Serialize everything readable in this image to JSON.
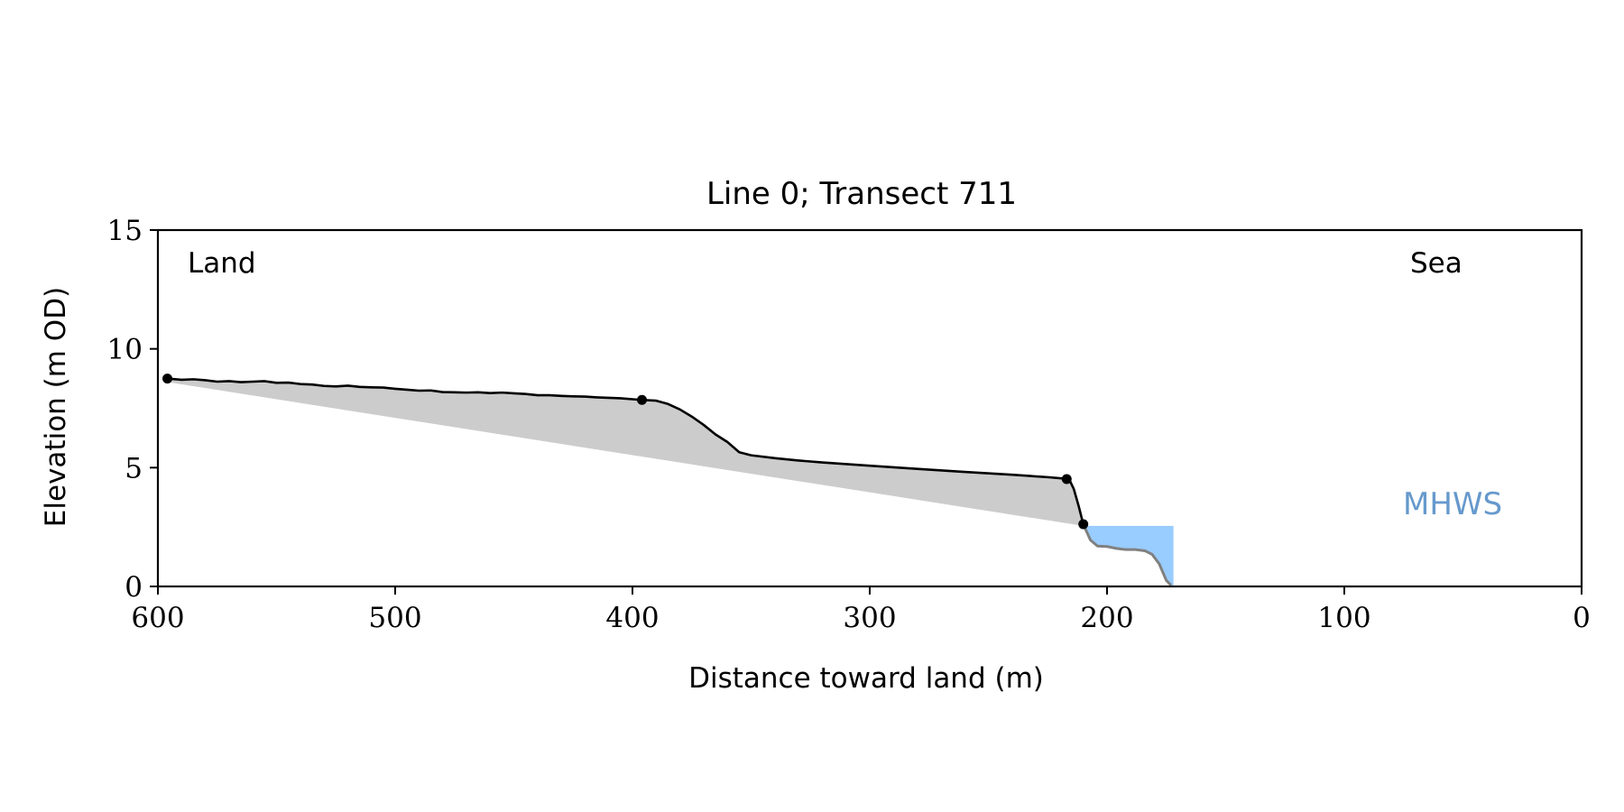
{
  "chart_data": {
    "type": "line",
    "title": "Line 0; Transect 711",
    "xlabel": "Distance toward land (m)",
    "ylabel": "Elevation (m OD)",
    "xlim": [
      600,
      0
    ],
    "ylim": [
      0,
      15
    ],
    "x_ticks": [
      600,
      500,
      400,
      300,
      200,
      100,
      0
    ],
    "y_ticks": [
      0,
      5,
      10,
      15
    ],
    "grid": false,
    "annotations": {
      "land": "Land",
      "sea": "Sea",
      "mhws": "MHWS"
    },
    "mhws_elevation": 2.55,
    "mhws_x_range": [
      209,
      172
    ],
    "colors": {
      "profile": "#000000",
      "fill": "#cccccc",
      "water": "#99ccff",
      "below_profile": "#808080",
      "mhws_label": "#6699cc"
    },
    "profile": {
      "x": [
        596,
        590,
        585,
        580,
        575,
        570,
        565,
        560,
        555,
        550,
        545,
        540,
        535,
        530,
        525,
        520,
        515,
        510,
        505,
        500,
        495,
        490,
        485,
        480,
        475,
        470,
        465,
        460,
        455,
        450,
        445,
        440,
        435,
        430,
        425,
        420,
        415,
        410,
        405,
        400,
        396,
        390,
        385,
        380,
        375,
        370,
        365,
        360,
        355,
        350,
        340,
        330,
        320,
        300,
        280,
        260,
        240,
        225,
        216
      ],
      "y": [
        8.75,
        8.7,
        8.72,
        8.68,
        8.62,
        8.64,
        8.6,
        8.62,
        8.64,
        8.57,
        8.58,
        8.52,
        8.5,
        8.44,
        8.42,
        8.45,
        8.4,
        8.38,
        8.37,
        8.32,
        8.28,
        8.24,
        8.25,
        8.18,
        8.17,
        8.16,
        8.17,
        8.14,
        8.16,
        8.13,
        8.1,
        8.05,
        8.05,
        8.02,
        8.0,
        7.99,
        7.96,
        7.94,
        7.92,
        7.88,
        7.85,
        7.82,
        7.68,
        7.45,
        7.15,
        6.8,
        6.4,
        6.08,
        5.65,
        5.52,
        5.4,
        5.3,
        5.22,
        5.08,
        4.95,
        4.82,
        4.7,
        4.6,
        4.52
      ]
    },
    "cliff": {
      "x": [
        216,
        214,
        212,
        210
      ],
      "y": [
        4.52,
        4.1,
        3.4,
        2.62
      ]
    },
    "below_mhws_profile": {
      "x": [
        210,
        207,
        204,
        200,
        196,
        192,
        188,
        184,
        181,
        178,
        175,
        173
      ],
      "y": [
        2.62,
        1.95,
        1.7,
        1.68,
        1.6,
        1.55,
        1.55,
        1.5,
        1.35,
        0.95,
        0.25,
        0.05
      ]
    },
    "markers": {
      "x": [
        596,
        396,
        217,
        210
      ],
      "y": [
        8.75,
        7.85,
        4.52,
        2.62
      ]
    },
    "baseline": {
      "x": [
        596,
        210
      ],
      "y": [
        8.6,
        2.55
      ]
    }
  }
}
